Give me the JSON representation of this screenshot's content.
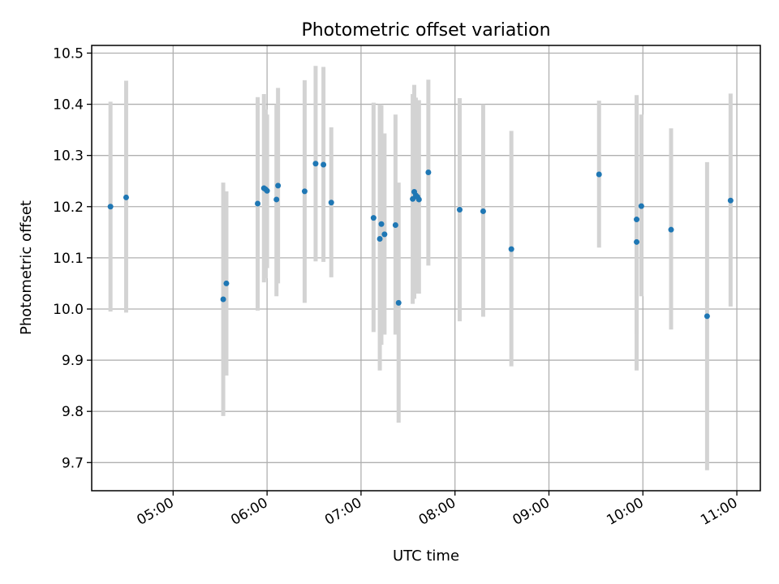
{
  "chart_data": {
    "type": "scatter",
    "title": "Photometric offset variation",
    "xlabel": "UTC time",
    "ylabel": "Photometric offset",
    "x_axis": "time",
    "xlim": [
      "04:08",
      "11:15"
    ],
    "ylim": [
      9.645,
      10.515
    ],
    "xticks": [
      "05:00",
      "06:00",
      "07:00",
      "08:00",
      "09:00",
      "10:00",
      "11:00"
    ],
    "yticks": [
      9.7,
      9.8,
      9.9,
      10.0,
      10.1,
      10.2,
      10.3,
      10.4,
      10.5
    ],
    "ytick_labels": [
      "9.7",
      "9.8",
      "9.9",
      "10.0",
      "10.1",
      "10.2",
      "10.3",
      "10.4",
      "10.5"
    ],
    "grid": true,
    "colors": {
      "point": "#1f77b4",
      "errorbar": "#d3d3d3"
    },
    "points": [
      {
        "x": "04:20",
        "y": 10.2,
        "ylo": 9.995,
        "yhi": 10.405
      },
      {
        "x": "04:30",
        "y": 10.218,
        "ylo": 9.993,
        "yhi": 10.446
      },
      {
        "x": "05:32",
        "y": 10.019,
        "ylo": 9.791,
        "yhi": 10.247
      },
      {
        "x": "05:34",
        "y": 10.05,
        "ylo": 9.87,
        "yhi": 10.23
      },
      {
        "x": "05:54",
        "y": 10.206,
        "ylo": 9.997,
        "yhi": 10.414
      },
      {
        "x": "05:58",
        "y": 10.236,
        "ylo": 10.052,
        "yhi": 10.42
      },
      {
        "x": "05:59",
        "y": 10.234,
        "ylo": 10.06,
        "yhi": 10.39
      },
      {
        "x": "06:00",
        "y": 10.231,
        "ylo": 10.08,
        "yhi": 10.38
      },
      {
        "x": "06:06",
        "y": 10.214,
        "ylo": 10.025,
        "yhi": 10.4
      },
      {
        "x": "06:07",
        "y": 10.241,
        "ylo": 10.05,
        "yhi": 10.432
      },
      {
        "x": "06:24",
        "y": 10.23,
        "ylo": 10.012,
        "yhi": 10.447
      },
      {
        "x": "06:31",
        "y": 10.284,
        "ylo": 10.093,
        "yhi": 10.475
      },
      {
        "x": "06:36",
        "y": 10.282,
        "ylo": 10.092,
        "yhi": 10.473
      },
      {
        "x": "06:41",
        "y": 10.208,
        "ylo": 10.062,
        "yhi": 10.355
      },
      {
        "x": "07:08",
        "y": 10.178,
        "ylo": 9.955,
        "yhi": 10.403
      },
      {
        "x": "07:12",
        "y": 10.137,
        "ylo": 9.88,
        "yhi": 10.4
      },
      {
        "x": "07:13",
        "y": 10.166,
        "ylo": 9.93,
        "yhi": 10.398
      },
      {
        "x": "07:15",
        "y": 10.146,
        "ylo": 9.95,
        "yhi": 10.343
      },
      {
        "x": "07:22",
        "y": 10.164,
        "ylo": 9.95,
        "yhi": 10.38
      },
      {
        "x": "07:24",
        "y": 10.012,
        "ylo": 9.778,
        "yhi": 10.247
      },
      {
        "x": "07:33",
        "y": 10.215,
        "ylo": 10.01,
        "yhi": 10.42
      },
      {
        "x": "07:34",
        "y": 10.229,
        "ylo": 10.02,
        "yhi": 10.438
      },
      {
        "x": "07:35",
        "y": 10.222,
        "ylo": 10.03,
        "yhi": 10.413
      },
      {
        "x": "07:36",
        "y": 10.219,
        "ylo": 10.04,
        "yhi": 10.4
      },
      {
        "x": "07:37",
        "y": 10.214,
        "ylo": 10.03,
        "yhi": 10.408
      },
      {
        "x": "07:43",
        "y": 10.267,
        "ylo": 10.085,
        "yhi": 10.448
      },
      {
        "x": "08:03",
        "y": 10.194,
        "ylo": 9.976,
        "yhi": 10.412
      },
      {
        "x": "08:18",
        "y": 10.191,
        "ylo": 9.985,
        "yhi": 10.4
      },
      {
        "x": "08:36",
        "y": 10.117,
        "ylo": 9.888,
        "yhi": 10.348
      },
      {
        "x": "09:32",
        "y": 10.263,
        "ylo": 10.12,
        "yhi": 10.407
      },
      {
        "x": "09:56",
        "y": 10.175,
        "ylo": 9.88,
        "yhi": 10.418
      },
      {
        "x": "09:56",
        "y": 10.131,
        "ylo": 9.95,
        "yhi": 10.3
      },
      {
        "x": "09:59",
        "y": 10.201,
        "ylo": 10.025,
        "yhi": 10.38
      },
      {
        "x": "10:18",
        "y": 10.155,
        "ylo": 9.96,
        "yhi": 10.353
      },
      {
        "x": "10:41",
        "y": 9.986,
        "ylo": 9.685,
        "yhi": 10.287
      },
      {
        "x": "10:56",
        "y": 10.212,
        "ylo": 10.005,
        "yhi": 10.421
      }
    ]
  }
}
